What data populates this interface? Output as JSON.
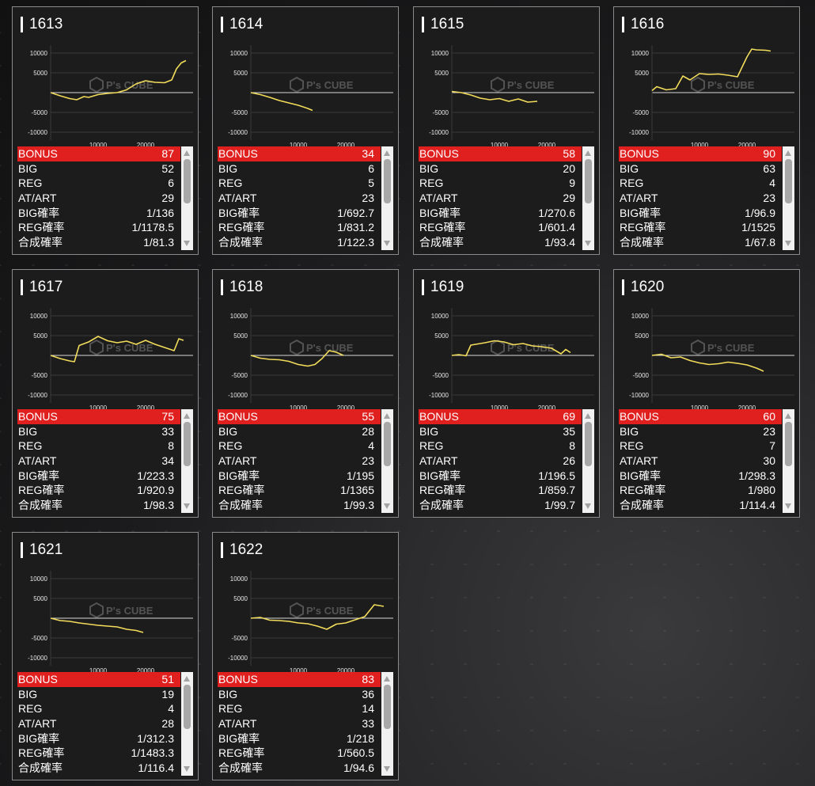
{
  "colors": {
    "accent": "#e01f1f",
    "line": "#f2dc5b",
    "panel": "#1c1c1c"
  },
  "watermark": {
    "name": "P's CUBE",
    "icon": "cube-logo-icon"
  },
  "graph_axis": {
    "y_ticks": [
      "10000",
      "5000",
      "-5000",
      "-10000"
    ],
    "x_ticks": [
      "10000",
      "20000"
    ]
  },
  "labels": {
    "bonus": "BONUS",
    "big": "BIG",
    "reg": "REG",
    "at": "AT/ART",
    "big_rate": "BIG確率",
    "reg_rate": "REG確率",
    "total_rate": "合成確率"
  },
  "machines": [
    {
      "number": "1613",
      "bonus": "87",
      "big": "52",
      "reg": "6",
      "at": "29",
      "big_rate": "1/136",
      "reg_rate": "1/1178.5",
      "total_rate": "1/81.3",
      "chart_data": {
        "type": "line",
        "xlim": [
          0,
          30000
        ],
        "ylim": [
          -12000,
          12000
        ],
        "x": [
          0,
          2000,
          4000,
          5500,
          7000,
          8000,
          10000,
          12000,
          14000,
          16000,
          18000,
          20000,
          22000,
          24000,
          25500,
          26500,
          27500,
          28500
        ],
        "y": [
          0,
          -800,
          -1500,
          -1800,
          -1000,
          -1200,
          -500,
          -200,
          0,
          700,
          2200,
          3000,
          2600,
          2500,
          3200,
          6000,
          7500,
          8100
        ]
      }
    },
    {
      "number": "1614",
      "bonus": "34",
      "big": "6",
      "reg": "5",
      "at": "23",
      "big_rate": "1/692.7",
      "reg_rate": "1/831.2",
      "total_rate": "1/122.3",
      "chart_data": {
        "type": "line",
        "xlim": [
          0,
          30000
        ],
        "ylim": [
          -12000,
          12000
        ],
        "x": [
          0,
          2000,
          4000,
          6000,
          8000,
          10000,
          12000,
          13000
        ],
        "y": [
          0,
          -500,
          -1200,
          -2000,
          -2600,
          -3200,
          -4000,
          -4500
        ]
      }
    },
    {
      "number": "1615",
      "bonus": "58",
      "big": "20",
      "reg": "9",
      "at": "29",
      "big_rate": "1/270.6",
      "reg_rate": "1/601.4",
      "total_rate": "1/93.4",
      "chart_data": {
        "type": "line",
        "xlim": [
          0,
          30000
        ],
        "ylim": [
          -12000,
          12000
        ],
        "x": [
          0,
          2000,
          4000,
          6000,
          8000,
          10000,
          12000,
          14000,
          16000,
          18000
        ],
        "y": [
          300,
          0,
          -600,
          -1400,
          -1800,
          -1500,
          -2200,
          -1600,
          -2400,
          -2200
        ]
      }
    },
    {
      "number": "1616",
      "bonus": "90",
      "big": "63",
      "reg": "4",
      "at": "23",
      "big_rate": "1/96.9",
      "reg_rate": "1/1525",
      "total_rate": "1/67.8",
      "chart_data": {
        "type": "line",
        "xlim": [
          0,
          30000
        ],
        "ylim": [
          -12000,
          12000
        ],
        "x": [
          0,
          1000,
          3000,
          5000,
          6500,
          8000,
          10000,
          12000,
          14000,
          16000,
          18000,
          20000,
          21000,
          22000,
          24000,
          25000
        ],
        "y": [
          500,
          1500,
          700,
          1000,
          4200,
          3200,
          4800,
          4600,
          4700,
          4400,
          4000,
          9000,
          11000,
          10800,
          10700,
          10500
        ]
      }
    },
    {
      "number": "1617",
      "bonus": "75",
      "big": "33",
      "reg": "8",
      "at": "34",
      "big_rate": "1/223.3",
      "reg_rate": "1/920.9",
      "total_rate": "1/98.3",
      "chart_data": {
        "type": "line",
        "xlim": [
          0,
          30000
        ],
        "ylim": [
          -12000,
          12000
        ],
        "x": [
          0,
          2000,
          4000,
          5000,
          6000,
          8000,
          10000,
          12000,
          14000,
          16000,
          18000,
          20000,
          22000,
          24000,
          26000,
          27000,
          28000
        ],
        "y": [
          0,
          -800,
          -1400,
          -1600,
          2500,
          3400,
          4800,
          3700,
          3200,
          3600,
          2800,
          3800,
          2800,
          2000,
          1200,
          4200,
          3800
        ]
      }
    },
    {
      "number": "1618",
      "bonus": "55",
      "big": "28",
      "reg": "4",
      "at": "23",
      "big_rate": "1/195",
      "reg_rate": "1/1365",
      "total_rate": "1/99.3",
      "chart_data": {
        "type": "line",
        "xlim": [
          0,
          30000
        ],
        "ylim": [
          -12000,
          12000
        ],
        "x": [
          0,
          2000,
          4000,
          6000,
          8000,
          10000,
          12000,
          13500,
          15000,
          16500,
          18000,
          19500
        ],
        "y": [
          0,
          -700,
          -1000,
          -1100,
          -1500,
          -2300,
          -2700,
          -2300,
          -800,
          1200,
          800,
          0
        ]
      }
    },
    {
      "number": "1619",
      "bonus": "69",
      "big": "35",
      "reg": "8",
      "at": "26",
      "big_rate": "1/196.5",
      "reg_rate": "1/859.7",
      "total_rate": "1/99.7",
      "chart_data": {
        "type": "line",
        "xlim": [
          0,
          30000
        ],
        "ylim": [
          -12000,
          12000
        ],
        "x": [
          0,
          1500,
          3000,
          4000,
          5500,
          7000,
          9000,
          11000,
          13000,
          15000,
          17000,
          19000,
          21000,
          23000,
          24000,
          25000
        ],
        "y": [
          0,
          200,
          -100,
          2600,
          2900,
          3200,
          3700,
          3400,
          2700,
          3000,
          2400,
          2200,
          1800,
          400,
          1500,
          700
        ]
      }
    },
    {
      "number": "1620",
      "bonus": "60",
      "big": "23",
      "reg": "7",
      "at": "30",
      "big_rate": "1/298.3",
      "reg_rate": "1/980",
      "total_rate": "1/114.4",
      "chart_data": {
        "type": "line",
        "xlim": [
          0,
          30000
        ],
        "ylim": [
          -12000,
          12000
        ],
        "x": [
          0,
          2000,
          4000,
          6000,
          8000,
          10000,
          12000,
          14000,
          16000,
          18000,
          20000,
          22000,
          23500
        ],
        "y": [
          0,
          300,
          -600,
          -400,
          -1300,
          -1900,
          -2300,
          -2100,
          -1700,
          -2000,
          -2400,
          -3200,
          -4000
        ]
      }
    },
    {
      "number": "1621",
      "bonus": "51",
      "big": "19",
      "reg": "4",
      "at": "28",
      "big_rate": "1/312.3",
      "reg_rate": "1/1483.3",
      "total_rate": "1/116.4",
      "chart_data": {
        "type": "line",
        "xlim": [
          0,
          30000
        ],
        "ylim": [
          -12000,
          12000
        ],
        "x": [
          0,
          2000,
          4000,
          6000,
          8000,
          10000,
          12000,
          14000,
          16000,
          18000,
          19500
        ],
        "y": [
          0,
          -600,
          -800,
          -1200,
          -1500,
          -1800,
          -2000,
          -2200,
          -2800,
          -3100,
          -3600
        ]
      }
    },
    {
      "number": "1622",
      "bonus": "83",
      "big": "36",
      "reg": "14",
      "at": "33",
      "big_rate": "1/218",
      "reg_rate": "1/560.5",
      "total_rate": "1/94.6",
      "chart_data": {
        "type": "line",
        "xlim": [
          0,
          30000
        ],
        "ylim": [
          -12000,
          12000
        ],
        "x": [
          0,
          2000,
          4000,
          6000,
          8000,
          10000,
          12000,
          14000,
          16000,
          18000,
          20000,
          22000,
          24000,
          26000,
          28000
        ],
        "y": [
          0,
          200,
          -500,
          -600,
          -800,
          -1200,
          -1400,
          -2000,
          -2800,
          -1500,
          -1200,
          -400,
          400,
          3400,
          3000
        ]
      }
    }
  ]
}
